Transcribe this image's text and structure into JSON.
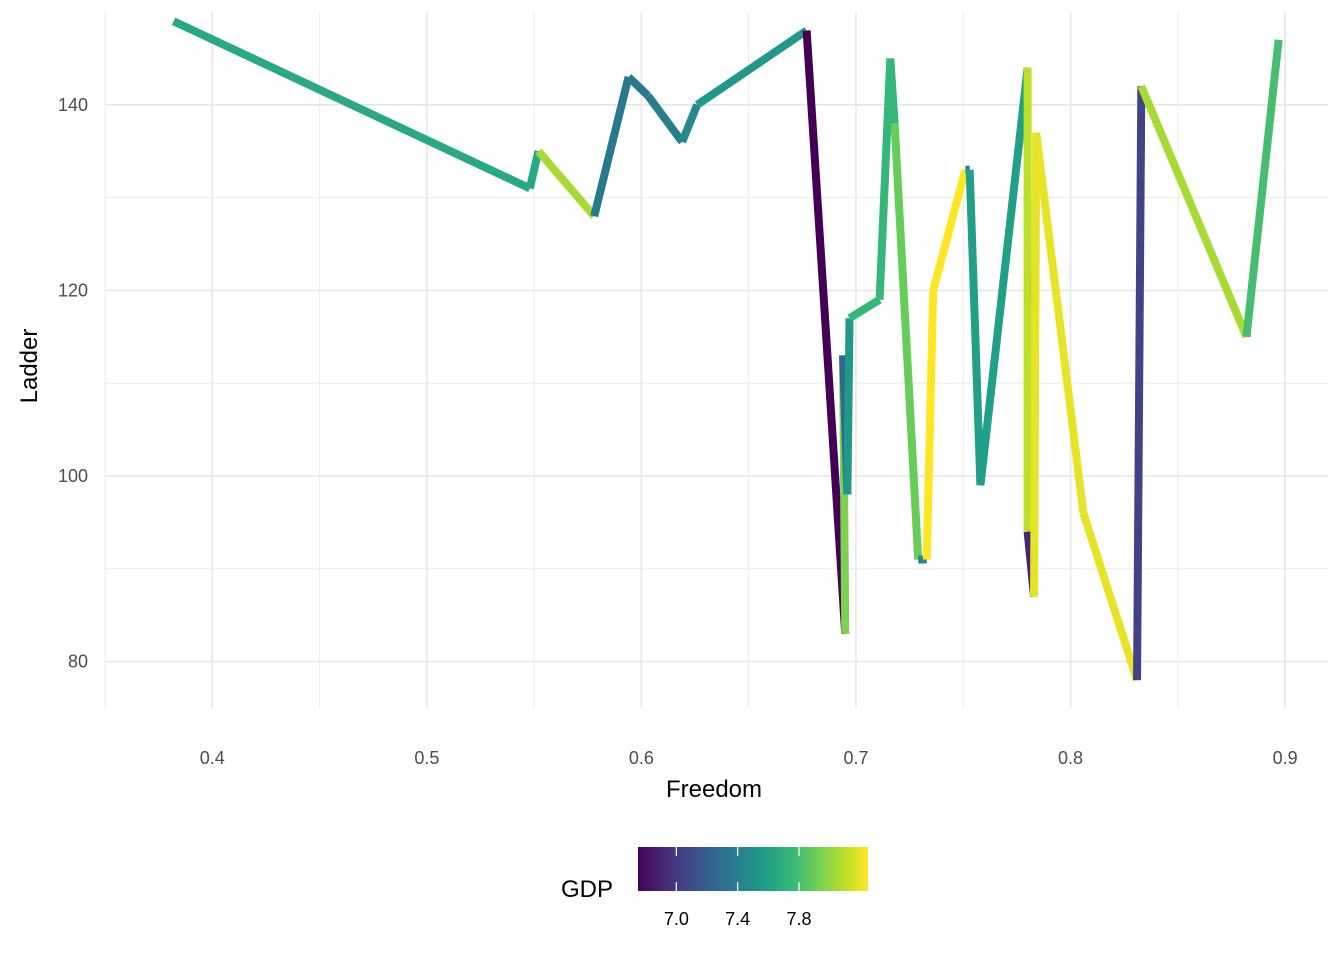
{
  "chart_data": {
    "type": "line",
    "xlabel": "Freedom",
    "ylabel": "Ladder",
    "xlim": [
      0.35,
      0.92
    ],
    "ylim": [
      75,
      150
    ],
    "x_ticks": [
      0.4,
      0.5,
      0.6,
      0.7,
      0.8,
      0.9
    ],
    "x_tick_labels": [
      "0.4",
      "0.5",
      "0.6",
      "0.7",
      "0.8",
      "0.9"
    ],
    "y_ticks": [
      80,
      100,
      120,
      140
    ],
    "y_tick_labels": [
      "80",
      "100",
      "120",
      "140"
    ],
    "grid": true,
    "legend": {
      "title": "GDP",
      "position": "bottom",
      "type": "colorbar",
      "palette": "viridis",
      "range": [
        6.75,
        8.25
      ],
      "ticks": [
        7.0,
        7.4,
        7.8
      ],
      "tick_labels": [
        "7.0",
        "7.4",
        "7.8"
      ],
      "colors": [
        "#440154",
        "#482878",
        "#3e4a89",
        "#31688e",
        "#26828e",
        "#1f9e89",
        "#35b779",
        "#6ece58",
        "#b5de2b",
        "#fde725"
      ]
    },
    "points": [
      {
        "x": 0.382,
        "y": 149,
        "gdp": 7.65
      },
      {
        "x": 0.548,
        "y": 131,
        "gdp": 7.65
      },
      {
        "x": 0.552,
        "y": 135,
        "gdp": 8.05
      },
      {
        "x": 0.578,
        "y": 128,
        "gdp": 7.35
      },
      {
        "x": 0.594,
        "y": 143,
        "gdp": 7.35
      },
      {
        "x": 0.603,
        "y": 141,
        "gdp": 7.4
      },
      {
        "x": 0.619,
        "y": 136,
        "gdp": 7.45
      },
      {
        "x": 0.626,
        "y": 140,
        "gdp": 7.55
      },
      {
        "x": 0.677,
        "y": 148,
        "gdp": 6.75
      },
      {
        "x": 0.695,
        "y": 83,
        "gdp": 7.95
      },
      {
        "x": 0.694,
        "y": 113,
        "gdp": 7.25
      },
      {
        "x": 0.696,
        "y": 98,
        "gdp": 7.55
      },
      {
        "x": 0.697,
        "y": 117,
        "gdp": 7.75
      },
      {
        "x": 0.711,
        "y": 119,
        "gdp": 7.75
      },
      {
        "x": 0.716,
        "y": 145,
        "gdp": 7.75
      },
      {
        "x": 0.718,
        "y": 138,
        "gdp": 7.9
      },
      {
        "x": 0.729,
        "y": 91,
        "gdp": 7.45
      },
      {
        "x": 0.733,
        "y": 91,
        "gdp": 8.25
      },
      {
        "x": 0.736,
        "y": 120,
        "gdp": 8.25
      },
      {
        "x": 0.751,
        "y": 133,
        "gdp": 7.4
      },
      {
        "x": 0.753,
        "y": 133,
        "gdp": 7.6
      },
      {
        "x": 0.758,
        "y": 99,
        "gdp": 7.6
      },
      {
        "x": 0.78,
        "y": 144,
        "gdp": 8.1
      },
      {
        "x": 0.78,
        "y": 94,
        "gdp": 6.9
      },
      {
        "x": 0.783,
        "y": 87,
        "gdp": 8.2
      },
      {
        "x": 0.784,
        "y": 137,
        "gdp": 8.2
      },
      {
        "x": 0.806,
        "y": 96,
        "gdp": 8.2
      },
      {
        "x": 0.831,
        "y": 78,
        "gdp": 7.05
      },
      {
        "x": 0.833,
        "y": 142,
        "gdp": 8.05
      },
      {
        "x": 0.882,
        "y": 115,
        "gdp": 7.8
      },
      {
        "x": 0.897,
        "y": 147,
        "gdp": 7.15
      }
    ]
  }
}
